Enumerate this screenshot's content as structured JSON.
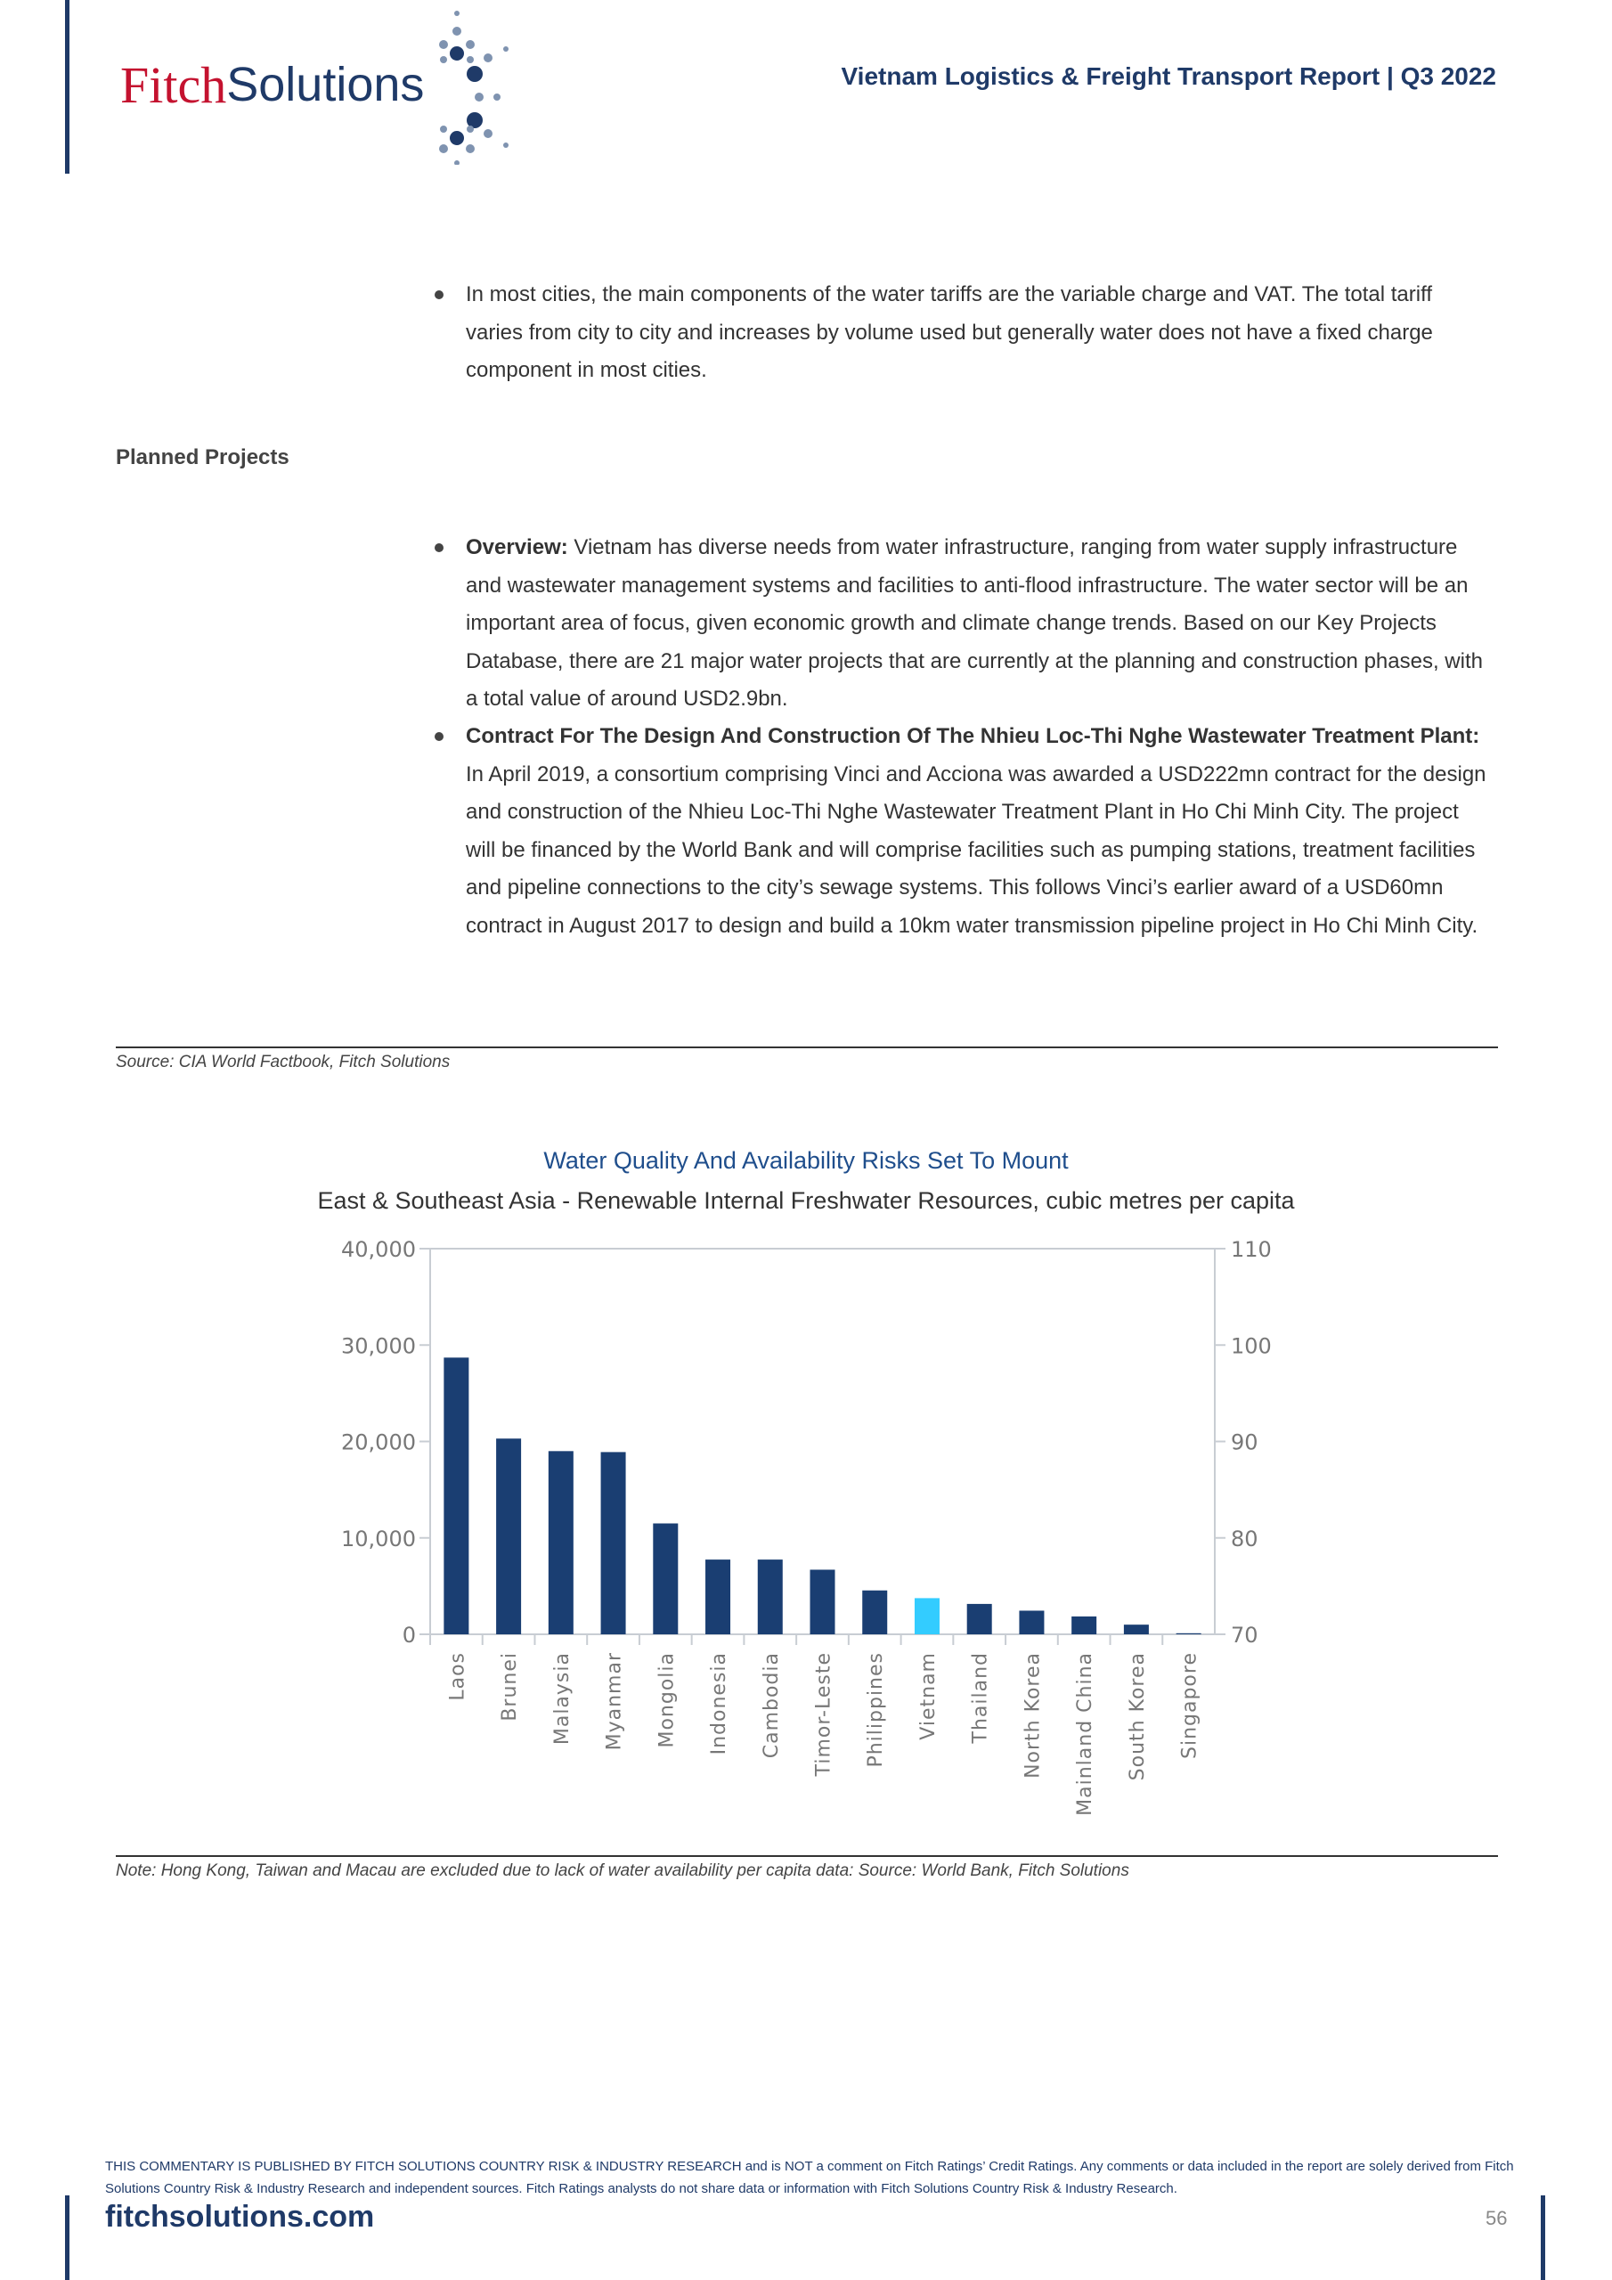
{
  "header": {
    "logo_fitch": "Fitch",
    "logo_solutions": "Solutions",
    "report_title": "Vietnam Logistics & Freight Transport Report | Q3 2022"
  },
  "body": {
    "bullet_tariffs": "In most cities, the main components of the water tariffs are the variable charge and VAT. The total tariff varies from city to city and increases by volume used but generally water does not have a fixed charge component in most cities.",
    "section_heading": "Planned Projects",
    "overview_label": "Overview:",
    "overview_text": " Vietnam has diverse needs from water infrastructure, ranging from water supply infrastructure and wastewater management systems and facilities to anti-flood infrastructure. The water sector will be an important area of focus, given economic growth and climate change trends. Based on our Key Projects Database, there are 21 major water projects that are currently at the planning and construction phases, with a total value of around USD2.9bn.",
    "contract_label": "Contract For The Design And Construction Of The Nhieu Loc-Thi Nghe Wastewater Treatment Plant:",
    "contract_text": " In April 2019, a consortium comprising Vinci and Acciona was awarded a USD222mn contract for the design and construction of the Nhieu Loc-Thi Nghe Wastewater Treatment Plant in Ho Chi Minh City. The project will be financed by the World Bank and will comprise facilities such as pumping stations, treatment facilities and pipeline connections to the city’s sewage systems. This follows Vinci’s earlier award of a USD60mn contract in August 2017 to design and build a 10km water transmission pipeline project in Ho Chi Minh City.",
    "source": "Source: CIA World Factbook, Fitch Solutions"
  },
  "chart_data": {
    "type": "bar",
    "title": "Water Quality And Availability Risks Set To Mount",
    "subtitle": "East & Southeast Asia - Renewable Internal Freshwater Resources, cubic metres per capita",
    "categories": [
      "Laos",
      "Brunei",
      "Malaysia",
      "Myanmar",
      "Mongolia",
      "Indonesia",
      "Cambodia",
      "Timor-Leste",
      "Philippines",
      "Vietnam",
      "Thailand",
      "North Korea",
      "Mainland China",
      "South Korea",
      "Singapore"
    ],
    "values": [
      28700,
      20300,
      19000,
      18900,
      11500,
      7750,
      7750,
      6700,
      4550,
      3750,
      3150,
      2450,
      1850,
      1000,
      110
    ],
    "ylim": [
      0,
      40000
    ],
    "yticks": [
      "0",
      "10,000",
      "20,000",
      "30,000",
      "40,000"
    ],
    "y2lim": [
      70,
      110
    ],
    "y2ticks": [
      "70",
      "80",
      "90",
      "100",
      "110"
    ],
    "colors": {
      "default": "#1a3e72",
      "highlight": "#33ccff"
    },
    "highlight": "Vietnam",
    "grid": false,
    "note": "Note: Hong Kong, Taiwan and Macau are excluded due to lack of water availability per capita data: Source: World Bank, Fitch Solutions"
  },
  "footer": {
    "disclaimer": "THIS COMMENTARY IS PUBLISHED BY FITCH SOLUTIONS COUNTRY RISK & INDUSTRY RESEARCH and is NOT a comment on Fitch Ratings’ Credit Ratings. Any comments or data included in the report are solely derived from Fitch Solutions Country Risk & Industry Research and independent sources. Fitch Ratings analysts do not share data or information with Fitch Solutions Country Risk & Industry Research.",
    "website": "fitchsolutions.com",
    "page_number": "56"
  }
}
